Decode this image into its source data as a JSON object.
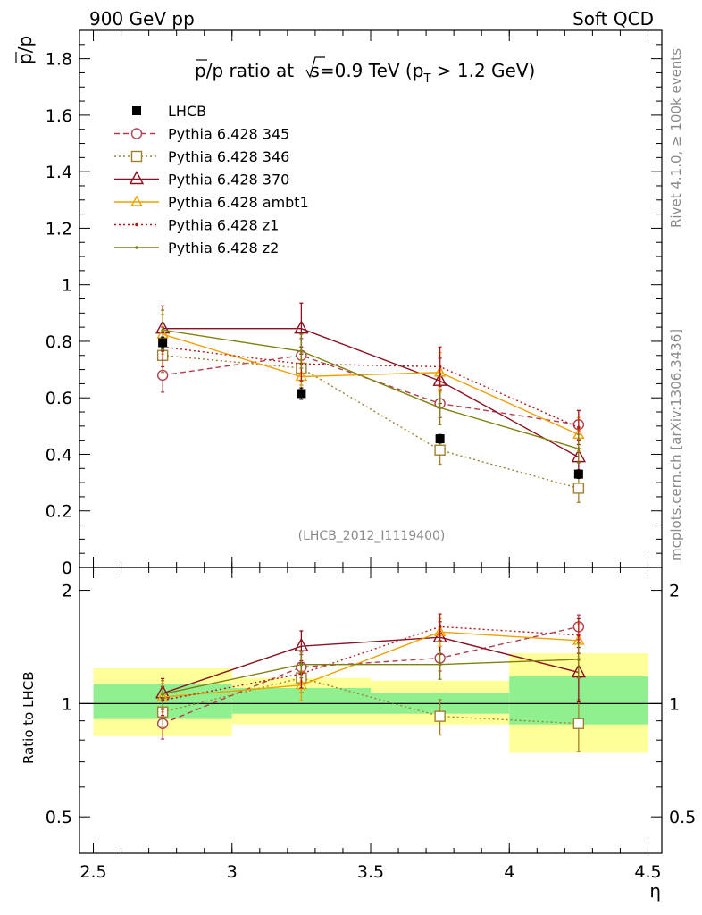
{
  "header": {
    "left": "900 GeV pp",
    "right": "Soft QCD"
  },
  "side_text": {
    "rivet": "Rivet 4.1.0, ≥ 100k events",
    "mcplots": "mcplots.cern.ch [arXiv:1306.3436]"
  },
  "colors": {
    "band_inner": "#90f090",
    "band_outer": "#ffff99",
    "lhcb": "#000000",
    "p345": "#b04050",
    "p346": "#a08030",
    "p370": "#8b1020",
    "ambt1": "#f0a000",
    "z1": "#b01818",
    "z2": "#808010"
  },
  "chart_data": [
    {
      "type": "line",
      "title_parts": {
        "a": "p",
        "b": "/p ratio at ",
        "c": "s",
        "d": "=0.9 TeV (p",
        "e": "T",
        "f": " > 1.2 GeV)"
      },
      "ylabel_parts": {
        "a": "p",
        "b": "/p"
      },
      "ref_label": "(LHCB_2012_I1119400)",
      "xlim": [
        2.45,
        4.55
      ],
      "ylim": [
        0,
        1.9
      ],
      "yticks": [
        0,
        0.2,
        0.4,
        0.6,
        0.8,
        1,
        1.2,
        1.4,
        1.6,
        1.8
      ],
      "yticklabels": [
        "0",
        "0.2",
        "0.4",
        "0.6",
        "0.8",
        "1",
        "1.2",
        "1.4",
        "1.6",
        "1.8"
      ],
      "x": [
        2.75,
        3.25,
        3.75,
        4.25
      ],
      "series": [
        {
          "key": "lhcb",
          "name": "LHCB",
          "values": [
            0.795,
            0.615,
            0.455,
            0.33
          ],
          "errors": [
            0.02,
            0.02,
            0.015,
            0.015
          ]
        },
        {
          "key": "p345",
          "name": "Pythia 6.428 345",
          "values": [
            0.68,
            0.75,
            0.58,
            0.505
          ],
          "errors": [
            0.06,
            0.06,
            0.05,
            0.05
          ]
        },
        {
          "key": "p346",
          "name": "Pythia 6.428 346",
          "values": [
            0.75,
            0.705,
            0.415,
            0.28
          ],
          "errors": [
            0.06,
            0.06,
            0.05,
            0.05
          ]
        },
        {
          "key": "p370",
          "name": "Pythia 6.428 370",
          "values": [
            0.845,
            0.845,
            0.66,
            0.39
          ],
          "errors": [
            0.08,
            0.09,
            0.08,
            0.06
          ]
        },
        {
          "key": "ambt1",
          "name": "Pythia 6.428 ambt1",
          "values": [
            0.825,
            0.675,
            0.69,
            0.47
          ],
          "errors": [
            0.07,
            0.06,
            0.07,
            0.06
          ]
        },
        {
          "key": "z1",
          "name": "Pythia 6.428 z1",
          "values": [
            0.78,
            0.72,
            0.71,
            0.495
          ],
          "errors": [
            0.07,
            0.06,
            0.07,
            0.06
          ]
        },
        {
          "key": "z2",
          "name": "Pythia 6.428 z2",
          "values": [
            0.84,
            0.765,
            0.565,
            0.42
          ],
          "errors": [
            0.07,
            0.06,
            0.06,
            0.05
          ]
        }
      ]
    },
    {
      "type": "line",
      "ylabel": "Ratio to LHCB",
      "xlabel": "η",
      "xlim": [
        2.45,
        4.55
      ],
      "ylim": [
        0.4,
        2.3
      ],
      "yscale": "log",
      "yticklabels_major": [
        "0.5",
        "1",
        "2"
      ],
      "ytick_major_values": [
        0.5,
        1,
        2
      ],
      "ytick_minor_values": [
        0.6,
        0.7,
        0.8,
        0.9,
        3
      ],
      "xticks": [
        2.5,
        3,
        3.5,
        4,
        4.5
      ],
      "xticklabels": [
        "2.5",
        "3",
        "3.5",
        "4",
        "4.5"
      ],
      "x": [
        2.75,
        3.25,
        3.75,
        4.25
      ],
      "bands": [
        {
          "x0": 2.5,
          "x1": 3.0,
          "inner": [
            0.91,
            1.13
          ],
          "outer": [
            0.82,
            1.24
          ]
        },
        {
          "x0": 3.0,
          "x1": 3.5,
          "inner": [
            0.94,
            1.1
          ],
          "outer": [
            0.88,
            1.17
          ]
        },
        {
          "x0": 3.5,
          "x1": 4.0,
          "inner": [
            0.94,
            1.07
          ],
          "outer": [
            0.88,
            1.15
          ]
        },
        {
          "x0": 4.0,
          "x1": 4.5,
          "inner": [
            0.88,
            1.18
          ],
          "outer": [
            0.74,
            1.36
          ]
        }
      ],
      "series": [
        {
          "key": "p345",
          "values": [
            0.885,
            1.25,
            1.32,
            1.6
          ],
          "errors": [
            0.08,
            0.1,
            0.1,
            0.12
          ]
        },
        {
          "key": "p346",
          "values": [
            0.95,
            1.17,
            0.925,
            0.885
          ],
          "errors": [
            0.08,
            0.1,
            0.1,
            0.14
          ]
        },
        {
          "key": "p370",
          "values": [
            1.065,
            1.42,
            1.5,
            1.21
          ],
          "errors": [
            0.1,
            0.14,
            0.15,
            0.2
          ]
        },
        {
          "key": "ambt1",
          "values": [
            1.04,
            1.12,
            1.55,
            1.47
          ],
          "errors": [
            0.09,
            0.1,
            0.13,
            0.16
          ]
        },
        {
          "key": "z1",
          "values": [
            1.02,
            1.2,
            1.6,
            1.52
          ],
          "errors": [
            0.09,
            0.1,
            0.13,
            0.16
          ]
        },
        {
          "key": "z2",
          "values": [
            1.06,
            1.27,
            1.27,
            1.31
          ],
          "errors": [
            0.09,
            0.1,
            0.11,
            0.14
          ]
        }
      ]
    }
  ]
}
